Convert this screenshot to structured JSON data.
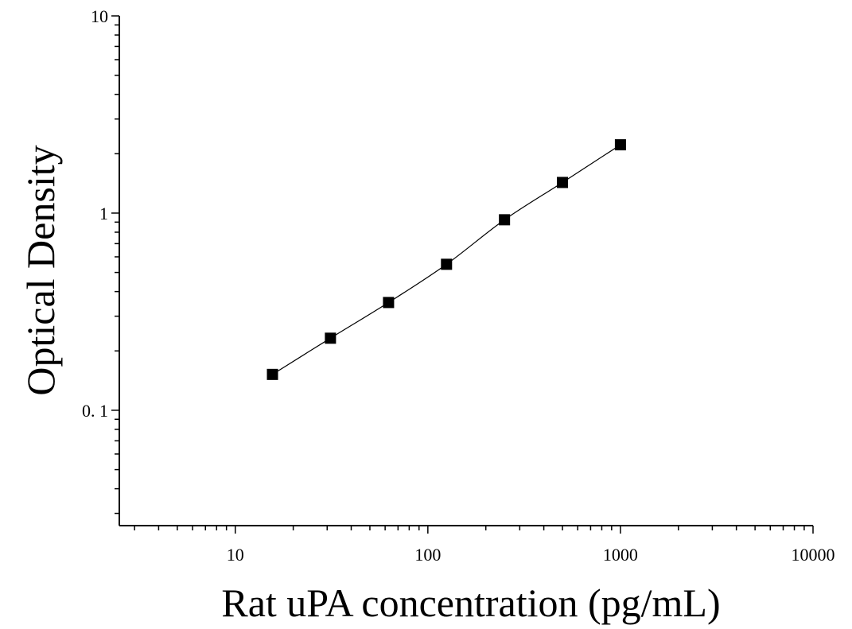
{
  "chart_data": {
    "type": "scatter",
    "title": "",
    "xlabel": "Rat uPA concentration (pg/mL)",
    "ylabel": "Optical Density",
    "xscale": "log",
    "yscale": "log",
    "xlim": [
      2.5,
      10000
    ],
    "ylim": [
      0.026,
      10
    ],
    "x_tick_labels": [
      {
        "value": 10,
        "label": "10"
      },
      {
        "value": 100,
        "label": "100"
      },
      {
        "value": 1000,
        "label": "1000"
      },
      {
        "value": 10000,
        "label": "10000"
      }
    ],
    "y_tick_labels": [
      {
        "value": 0.1,
        "label": "0. 1"
      },
      {
        "value": 1,
        "label": "1"
      },
      {
        "value": 10,
        "label": "10"
      }
    ],
    "grid": false,
    "legend": "none",
    "marker": "square",
    "marker_color": "#000000",
    "line_color": "#000000",
    "series": [
      {
        "x": [
          15.6,
          31.2,
          62.5,
          125,
          250,
          500,
          1000
        ],
        "y": [
          0.152,
          0.232,
          0.352,
          0.55,
          0.925,
          1.43,
          2.22
        ]
      }
    ]
  }
}
